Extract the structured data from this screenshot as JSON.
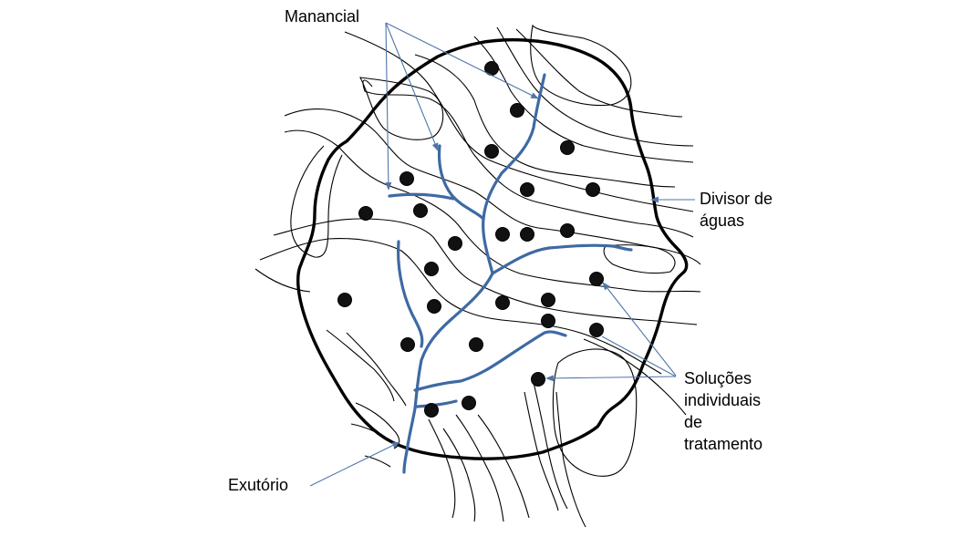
{
  "labels": {
    "manancial": "Manancial",
    "divisor_line1": "Divisor de",
    "divisor_line2": "águas",
    "solucoes_line1": "Soluções",
    "solucoes_line2": "individuais",
    "solucoes_line3": "de",
    "solucoes_line4": "tratamento",
    "exutorio": "Exutório"
  },
  "colors": {
    "river": "#3e6aa3",
    "arrow": "#4f76a8",
    "divide": "#000000",
    "contour": "#000000",
    "dot": "#111111"
  }
}
